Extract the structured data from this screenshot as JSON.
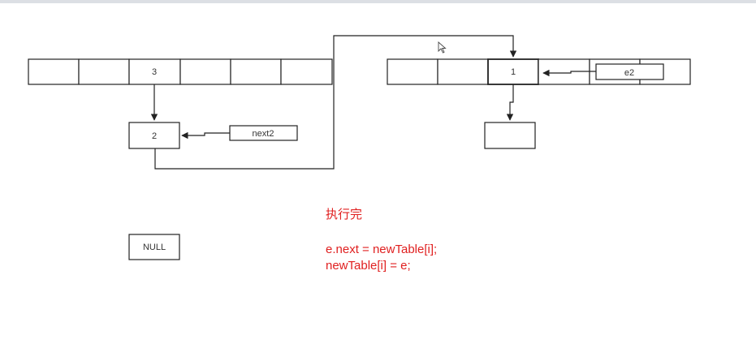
{
  "diagram": {
    "left_table_values": [
      "",
      "",
      "3",
      "",
      "",
      ""
    ],
    "right_table_values": [
      "",
      "",
      "1",
      "",
      "",
      ""
    ],
    "node_2": "2",
    "node_next2": "next2",
    "node_e2": "e2",
    "node_null": "NULL",
    "node_empty": ""
  },
  "annotation": {
    "heading": "执行完",
    "line1": "e.next = newTable[i];",
    "line2": "newTable[i] = e;"
  }
}
